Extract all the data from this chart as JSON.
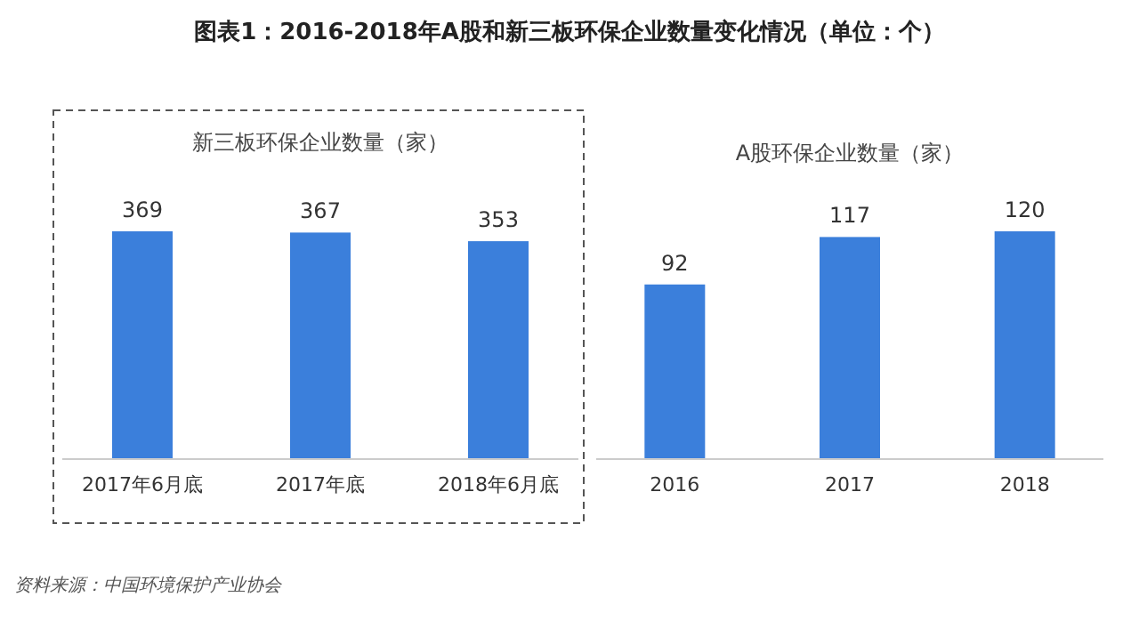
{
  "chart_data": [
    {
      "type": "bar",
      "title": "图表1：2016-2018年A股和新三板环保企业数量变化情况（单位：个）",
      "subtitle": "新三板环保企业数量（家）",
      "categories": [
        "2017年6月底",
        "2017年底",
        "2018年6月底"
      ],
      "values": [
        369,
        367,
        353
      ],
      "color": "#3b7fdb",
      "data_labels": true,
      "annotations": [
        "资料来源：中国环境保护产业协会"
      ]
    },
    {
      "type": "bar",
      "subtitle": "A股环保企业数量（家）",
      "categories": [
        "2016",
        "2017",
        "2018"
      ],
      "values": [
        92,
        117,
        120
      ],
      "color": "#3b7fdb",
      "data_labels": true
    }
  ]
}
